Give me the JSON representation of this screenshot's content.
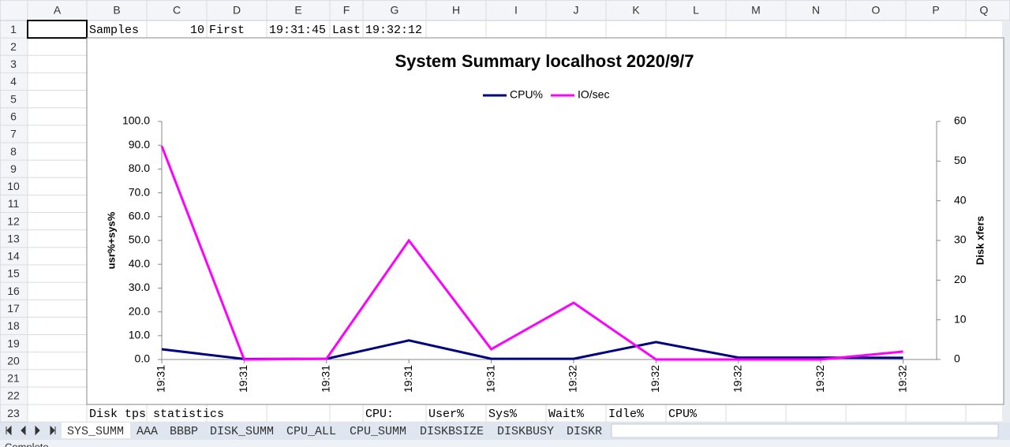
{
  "spreadsheet": {
    "columns": [
      "A",
      "B",
      "C",
      "D",
      "E",
      "F",
      "G",
      "H",
      "I",
      "J",
      "K",
      "L",
      "M",
      "N",
      "O",
      "P",
      "Q"
    ],
    "rows": [
      1,
      2,
      3,
      4,
      5,
      6,
      7,
      8,
      9,
      10,
      11,
      12,
      13,
      14,
      15,
      16,
      17,
      18,
      19,
      20,
      21,
      22,
      23
    ],
    "cells": {
      "1": {
        "B": "Samples",
        "C": 10,
        "D": "First",
        "E": "19:31:45",
        "F": "Last",
        "G": "19:32:12"
      },
      "23": {
        "B": "Disk tps statistics",
        "G": "CPU:",
        "H": "User%",
        "I": "Sys%",
        "J": "Wait%",
        "K": "Idle%",
        "L": "CPU%"
      }
    }
  },
  "chart_data": {
    "type": "line",
    "title": "System Summary localhost  2020/9/7",
    "ylabel": "usr%+sys%",
    "y2label": "Disk xfers",
    "categories": [
      "19:31",
      "19:31",
      "19:31",
      "19:31",
      "19:31",
      "19:32",
      "19:32",
      "19:32",
      "19:32",
      "19:32"
    ],
    "series": [
      {
        "name": "CPU%",
        "color": "#000080",
        "values": [
          4.3,
          0.2,
          0.3,
          8.0,
          0.3,
          0.3,
          7.3,
          0.8,
          0.8,
          0.7
        ]
      },
      {
        "name": "IO/sec",
        "color": "#ff00ff",
        "axis": "y2",
        "values": [
          53.8,
          0,
          0.2,
          30.0,
          2.6,
          14.3,
          0,
          0,
          0,
          2.0
        ]
      }
    ],
    "ylim": [
      0,
      100
    ],
    "yticks": [
      {
        "value": 0,
        "label": "0.0"
      },
      {
        "value": 10,
        "label": "10.0"
      },
      {
        "value": 20,
        "label": "20.0"
      },
      {
        "value": 30,
        "label": "30.0"
      },
      {
        "value": 40,
        "label": "40.0"
      },
      {
        "value": 50,
        "label": "50.0"
      },
      {
        "value": 60,
        "label": "60.0"
      },
      {
        "value": 70,
        "label": "70.0"
      },
      {
        "value": 80,
        "label": "80.0"
      },
      {
        "value": 90,
        "label": "90.0"
      },
      {
        "value": 100,
        "label": "100.0"
      }
    ],
    "y2lim": [
      0,
      60
    ],
    "y2ticks": [
      0,
      10,
      20,
      30,
      40,
      50,
      60
    ],
    "legend": "top",
    "grid": false
  },
  "sheet_tabs": [
    "SYS_SUMM",
    "AAA",
    "BBBP",
    "DISK_SUMM",
    "CPU_ALL",
    "CPU_SUMM",
    "DISKBSIZE",
    "DISKBUSY",
    "DISKR"
  ],
  "status": "Complete"
}
